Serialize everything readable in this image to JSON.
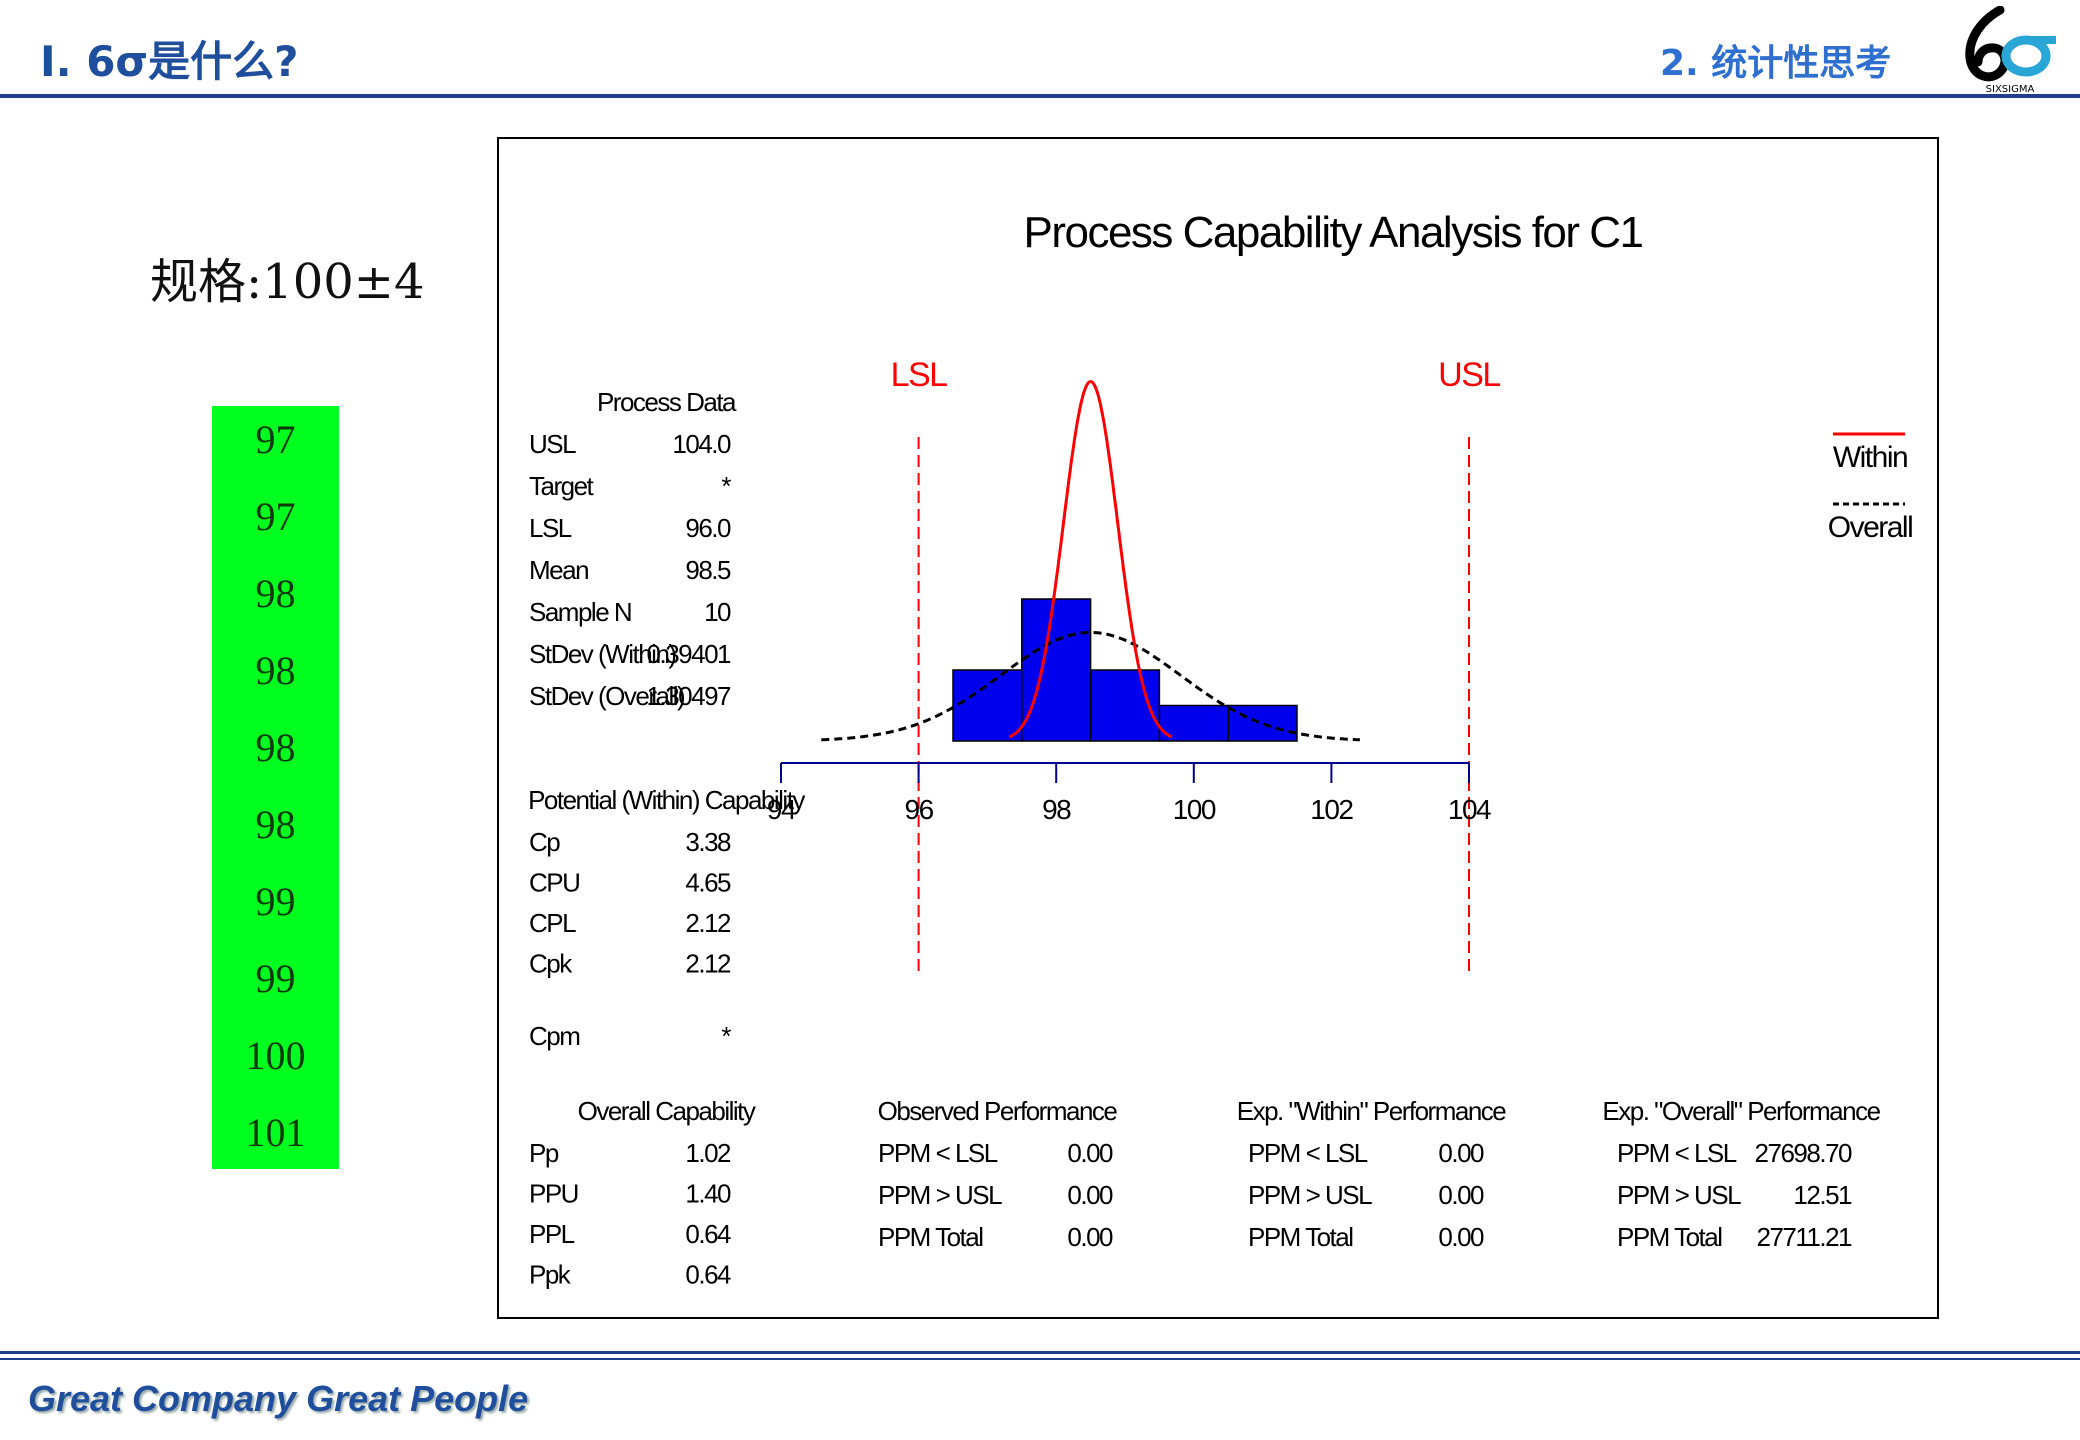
{
  "header": {
    "left_title": "Ⅰ. 6σ是什么?",
    "right_title": "2. 统计性思考",
    "logo_text": "SIXSIGMA"
  },
  "spec_label": "规格:100±4",
  "data_values": [
    "97",
    "97",
    "98",
    "98",
    "98",
    "98",
    "99",
    "99",
    "100",
    "101"
  ],
  "footer_text": "Great Company Great People",
  "colors": {
    "brand": "#1f4e9c",
    "accent": "#2e6fd0",
    "green": "#00ff1e",
    "bar": "#0000ee",
    "spec": "#ff0000"
  },
  "chart_data": {
    "type": "bar",
    "title": "Process Capability Analysis for C1",
    "lsl_label": "LSL",
    "usl_label": "USL",
    "lsl": 96,
    "usl": 104,
    "xlim": [
      94,
      104
    ],
    "x_ticks": [
      "94",
      "96",
      "98",
      "100",
      "102",
      "104"
    ],
    "bins": [
      {
        "from": 96.5,
        "to": 97.5,
        "count": 2
      },
      {
        "from": 97.5,
        "to": 98.5,
        "count": 4
      },
      {
        "from": 98.5,
        "to": 99.5,
        "count": 2
      },
      {
        "from": 99.5,
        "to": 100.5,
        "count": 1
      },
      {
        "from": 100.5,
        "to": 101.5,
        "count": 1
      }
    ],
    "mean": 98.5,
    "stdev_within": 0.39401,
    "stdev_overall": 1.30497,
    "legend": [
      "Within",
      "Overall"
    ],
    "process_data": {
      "heading": "Process Data",
      "rows": [
        [
          "USL",
          "104.0"
        ],
        [
          "Target",
          "*"
        ],
        [
          "LSL",
          "96.0"
        ],
        [
          "Mean",
          "98.5"
        ],
        [
          "Sample N",
          "10"
        ],
        [
          "StDev (Within)",
          "0.39401"
        ],
        [
          "StDev (Overall)",
          "1.30497"
        ]
      ]
    },
    "potential": {
      "heading": "Potential (Within) Capability",
      "rows": [
        [
          "Cp",
          "3.38"
        ],
        [
          "CPU",
          "4.65"
        ],
        [
          "CPL",
          "2.12"
        ],
        [
          "Cpk",
          "2.12"
        ]
      ],
      "cpm": [
        "Cpm",
        "*"
      ]
    },
    "overall": {
      "heading": "Overall Capability",
      "rows": [
        [
          "Pp",
          "1.02"
        ],
        [
          "PPU",
          "1.40"
        ],
        [
          "PPL",
          "0.64"
        ],
        [
          "Ppk",
          "0.64"
        ]
      ]
    },
    "perf_tables": [
      {
        "heading": "Observed Performance",
        "rows": [
          [
            "PPM < LSL",
            "0.00"
          ],
          [
            "PPM > USL",
            "0.00"
          ],
          [
            "PPM Total",
            "0.00"
          ]
        ]
      },
      {
        "heading": "Exp. \"Within\" Performance",
        "rows": [
          [
            "PPM < LSL",
            "0.00"
          ],
          [
            "PPM > USL",
            "0.00"
          ],
          [
            "PPM Total",
            "0.00"
          ]
        ]
      },
      {
        "heading": "Exp. \"Overall\" Performance",
        "rows": [
          [
            "PPM < LSL",
            "27698.70"
          ],
          [
            "PPM > USL",
            "12.51"
          ],
          [
            "PPM Total",
            "27711.21"
          ]
        ]
      }
    ]
  }
}
